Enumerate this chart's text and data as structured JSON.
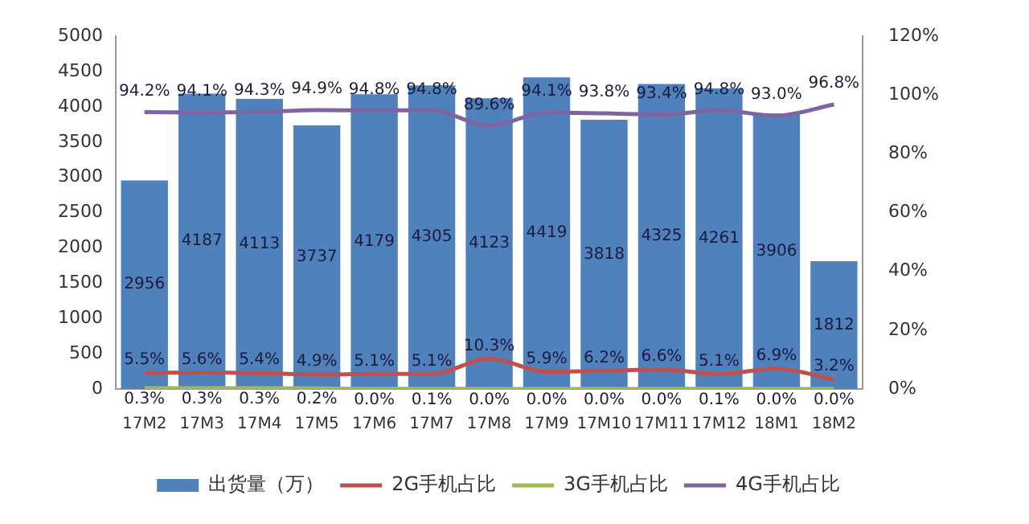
{
  "chart_data": {
    "type": "bar",
    "categories": [
      "17M2",
      "17M3",
      "17M4",
      "17M5",
      "17M6",
      "17M7",
      "17M8",
      "17M9",
      "17M10",
      "17M11",
      "17M12",
      "18M1",
      "18M2"
    ],
    "series": [
      {
        "name": "出货量（万）",
        "color": "#4f81bd",
        "values": [
          2956,
          4187,
          4113,
          3737,
          4179,
          4305,
          4123,
          4419,
          3818,
          4325,
          4261,
          3906,
          1812
        ],
        "value_labels": [
          "2956",
          "4187",
          "4113",
          "3737",
          "4179",
          "4305",
          "4123",
          "4419",
          "3818",
          "4325",
          "4261",
          "3906",
          "1812"
        ]
      },
      {
        "name": "2G手机占比",
        "type": "line",
        "axis": "y2",
        "color": "#c0504d",
        "values": [
          5.5,
          5.6,
          5.4,
          4.9,
          5.1,
          5.1,
          10.3,
          5.9,
          6.2,
          6.6,
          5.1,
          6.9,
          3.2
        ],
        "value_labels": [
          "5.5%",
          "5.6%",
          "5.4%",
          "4.9%",
          "5.1%",
          "5.1%",
          "10.3%",
          "5.9%",
          "6.2%",
          "6.6%",
          "5.1%",
          "6.9%",
          "3.2%"
        ]
      },
      {
        "name": "3G手机占比",
        "type": "line",
        "axis": "y2",
        "color": "#9bbb59",
        "values": [
          0.3,
          0.3,
          0.3,
          0.2,
          0.0,
          0.1,
          0.0,
          0.0,
          0.0,
          0.0,
          0.1,
          0.0,
          0.0
        ],
        "value_labels": [
          "0.3%",
          "0.3%",
          "0.3%",
          "0.2%",
          "0.0%",
          "0.1%",
          "0.0%",
          "0.0%",
          "0.0%",
          "0.0%",
          "0.1%",
          "0.0%",
          "0.0%"
        ]
      },
      {
        "name": "4G手机占比",
        "type": "line",
        "axis": "y2",
        "color": "#8064a2",
        "values": [
          94.2,
          94.1,
          94.3,
          94.9,
          94.8,
          94.8,
          89.6,
          94.1,
          93.8,
          93.4,
          94.8,
          93.0,
          96.8
        ],
        "value_labels": [
          "94.2%",
          "94.1%",
          "94.3%",
          "94.9%",
          "94.8%",
          "94.8%",
          "89.6%",
          "94.1%",
          "93.8%",
          "93.4%",
          "94.8%",
          "93.0%",
          "96.8%"
        ]
      }
    ],
    "ylim": [
      0,
      5000
    ],
    "yticks": [
      0,
      500,
      1000,
      1500,
      2000,
      2500,
      3000,
      3500,
      4000,
      4500,
      5000
    ],
    "y2lim": [
      0,
      120
    ],
    "y2ticks": [
      {
        "value": 0,
        "label": "0%"
      },
      {
        "value": 20,
        "label": "20%"
      },
      {
        "value": 40,
        "label": "40%"
      },
      {
        "value": 60,
        "label": "60%"
      },
      {
        "value": 80,
        "label": "80%"
      },
      {
        "value": 100,
        "label": "100%"
      },
      {
        "value": 120,
        "label": "120%"
      }
    ],
    "legend": "bottom",
    "grid": false,
    "marker": "none",
    "line_style": "solid"
  }
}
